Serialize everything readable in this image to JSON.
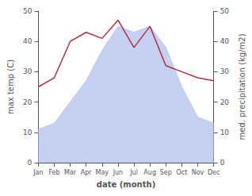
{
  "chart_data": {
    "type": "line",
    "categories": [
      "Jan",
      "Feb",
      "Mar",
      "Apr",
      "May",
      "Jun",
      "Jul",
      "Aug",
      "Sep",
      "Oct",
      "Nov",
      "Dec"
    ],
    "xlabel": "date (month)",
    "ylabel": "max temp (C)",
    "y2label": "med. precipitation (kg/m2)",
    "ylim": [
      0,
      50
    ],
    "yticks": [
      0,
      10,
      20,
      30,
      40,
      50
    ],
    "y2lim": [
      0,
      50
    ],
    "y2ticks": [
      0,
      10,
      20,
      30,
      40,
      50
    ],
    "grid": false,
    "series": [
      {
        "type": "area",
        "color": "#bcc8ef",
        "values": [
          11,
          13,
          20,
          27,
          37,
          45,
          43,
          45,
          38,
          25,
          15,
          13
        ]
      },
      {
        "type": "line",
        "color": "#b03040",
        "axis": "y2",
        "values": [
          25,
          28,
          40,
          43,
          41,
          47,
          38,
          45,
          32,
          30,
          28,
          27
        ]
      }
    ]
  }
}
